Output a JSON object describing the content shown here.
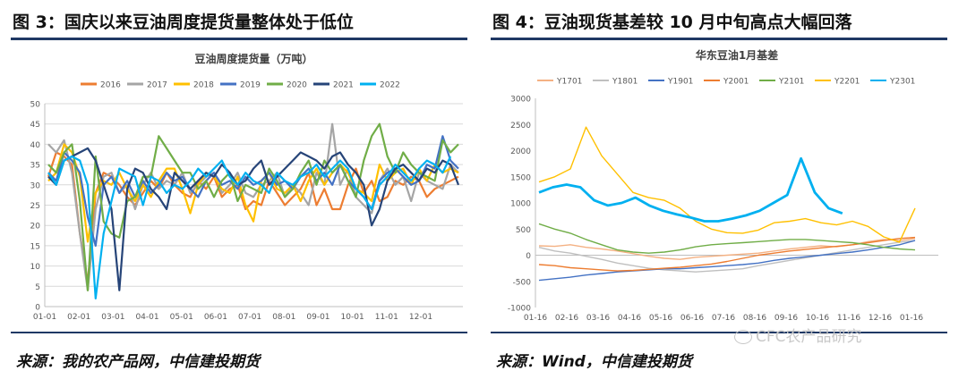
{
  "left_panel": {
    "figure_title": "图 3：国庆以来豆油周度提货量整体处于低位",
    "source": "来源：我的农产品网，中信建投期货"
  },
  "right_panel": {
    "figure_title": "图 4：豆油现货基差较 10 月中旬高点大幅回落",
    "source": "来源：Wind，中信建投期货"
  },
  "watermark": "CFC农产品研究",
  "colors": {
    "rule": "#1f3864"
  },
  "chart_data": [
    {
      "type": "line",
      "title": "豆油周度提货量（万吨）",
      "x_ticks": [
        "01-01",
        "02-01",
        "03-01",
        "04-01",
        "05-01",
        "06-01",
        "07-01",
        "08-01",
        "09-01",
        "10-01",
        "11-01",
        "12-01"
      ],
      "ylim": [
        0,
        50
      ],
      "y_ticks": [
        0,
        5,
        10,
        15,
        20,
        25,
        30,
        35,
        40,
        45,
        50
      ],
      "grid": true,
      "legend": "top",
      "series": [
        {
          "name": "2016",
          "color": "#ed7d31",
          "values": [
            32,
            38,
            37,
            35,
            18,
            6,
            28,
            33,
            32,
            30,
            27,
            25,
            28,
            31,
            29,
            33,
            30,
            28,
            27,
            31,
            29,
            32,
            27,
            29,
            30,
            24,
            26,
            25,
            31,
            28,
            25,
            27,
            29,
            33,
            25,
            29,
            24,
            24,
            30,
            34,
            28,
            31,
            26,
            27,
            31,
            30,
            32,
            31,
            27,
            29,
            30,
            31,
            32
          ]
        },
        {
          "name": "2017",
          "color": "#a5a5a5",
          "values": [
            40,
            38,
            41,
            33,
            18,
            4,
            24,
            32,
            33,
            28,
            30,
            24,
            30,
            33,
            29,
            31,
            30,
            33,
            28,
            30,
            32,
            33,
            28,
            30,
            33,
            28,
            27,
            30,
            31,
            33,
            27,
            30,
            28,
            25,
            33,
            30,
            45,
            30,
            34,
            27,
            25,
            23,
            31,
            34,
            30,
            32,
            26,
            33,
            31,
            30,
            29,
            35,
            33
          ]
        },
        {
          "name": "2018",
          "color": "#ffc000",
          "values": [
            31,
            33,
            40,
            38,
            32,
            16,
            28,
            31,
            30,
            33,
            29,
            26,
            30,
            27,
            31,
            34,
            34,
            29,
            23,
            30,
            33,
            32,
            29,
            28,
            32,
            25,
            21,
            31,
            33,
            29,
            28,
            30,
            26,
            31,
            34,
            30,
            33,
            35,
            33,
            29,
            28,
            26,
            35,
            31,
            33,
            34,
            30,
            34,
            31,
            35,
            33,
            34,
            33
          ]
        },
        {
          "name": "2019",
          "color": "#4472c4",
          "values": [
            33,
            31,
            38,
            36,
            33,
            22,
            15,
            30,
            32,
            28,
            31,
            27,
            31,
            28,
            30,
            33,
            31,
            32,
            29,
            27,
            31,
            33,
            30,
            31,
            29,
            32,
            30,
            31,
            33,
            30,
            31,
            29,
            32,
            34,
            31,
            33,
            30,
            35,
            31,
            29,
            27,
            24,
            31,
            33,
            34,
            32,
            30,
            31,
            35,
            34,
            42,
            36,
            34
          ]
        },
        {
          "name": "2020",
          "color": "#70ad47",
          "values": [
            35,
            33,
            38,
            40,
            26,
            4,
            37,
            21,
            18,
            17,
            26,
            27,
            32,
            32,
            42,
            39,
            36,
            33,
            33,
            29,
            31,
            27,
            31,
            33,
            26,
            30,
            29,
            28,
            34,
            31,
            27,
            29,
            33,
            36,
            30,
            36,
            33,
            35,
            31,
            27,
            36,
            42,
            45,
            37,
            33,
            38,
            35,
            33,
            32,
            31,
            41,
            38,
            40
          ]
        },
        {
          "name": "2021",
          "color": "#264478",
          "values": [
            32,
            30,
            36,
            37,
            38,
            39,
            36,
            30,
            24,
            4,
            29,
            34,
            33,
            29,
            27,
            24,
            33,
            31,
            29,
            31,
            33,
            32,
            35,
            33,
            30,
            31,
            34,
            36,
            30,
            32,
            34,
            36,
            38,
            37,
            36,
            34,
            37,
            38,
            35,
            33,
            30,
            20,
            24,
            31,
            34,
            35,
            33,
            31,
            34,
            33,
            36,
            35,
            30
          ]
        },
        {
          "name": "2022",
          "color": "#00b0f0",
          "values": [
            33,
            30,
            36,
            37,
            36,
            30,
            2,
            18,
            26,
            34,
            33,
            32,
            25,
            32,
            31,
            28,
            30,
            29,
            31,
            34,
            32,
            34,
            36,
            32,
            30,
            33,
            31,
            30,
            28,
            33,
            31,
            30,
            32,
            33,
            35,
            32,
            34,
            36,
            34,
            29,
            27,
            24,
            30,
            32,
            35,
            33,
            31,
            34,
            36,
            35,
            33,
            37
          ]
        }
      ]
    },
    {
      "type": "line",
      "title": "华东豆油1月基差",
      "x_ticks": [
        "01-16",
        "02-16",
        "03-16",
        "04-16",
        "05-16",
        "06-16",
        "07-16",
        "08-16",
        "09-16",
        "10-16",
        "11-16",
        "12-16",
        "01-16"
      ],
      "ylim": [
        -1000,
        3000
      ],
      "y_ticks": [
        -1000,
        -500,
        0,
        500,
        1000,
        1500,
        2000,
        2500,
        3000
      ],
      "grid": false,
      "legend": "top",
      "series": [
        {
          "name": "Y1701",
          "color": "#f4b183",
          "values": [
            180,
            170,
            200,
            150,
            120,
            80,
            30,
            -20,
            -60,
            -80,
            -40,
            -20,
            0,
            20,
            40,
            80,
            120,
            150,
            180,
            160,
            200,
            260,
            300,
            280,
            320
          ]
        },
        {
          "name": "Y1801",
          "color": "#bfbfbf",
          "values": [
            150,
            80,
            40,
            -20,
            -80,
            -150,
            -200,
            -250,
            -280,
            -300,
            -320,
            -300,
            -280,
            -260,
            -200,
            -150,
            -100,
            -50,
            0,
            50,
            100,
            150,
            200,
            250,
            280
          ]
        },
        {
          "name": "Y1901",
          "color": "#4472c4",
          "values": [
            -480,
            -450,
            -420,
            -380,
            -350,
            -320,
            -300,
            -280,
            -260,
            -260,
            -240,
            -220,
            -200,
            -180,
            -150,
            -100,
            -60,
            -30,
            0,
            30,
            60,
            100,
            150,
            200,
            280
          ]
        },
        {
          "name": "Y2001",
          "color": "#ed7d31",
          "values": [
            -180,
            -200,
            -240,
            -260,
            -280,
            -300,
            -290,
            -270,
            -250,
            -230,
            -200,
            -170,
            -120,
            -60,
            0,
            40,
            80,
            110,
            140,
            170,
            200,
            240,
            280,
            320,
            340
          ]
        },
        {
          "name": "Y2101",
          "color": "#70ad47",
          "values": [
            600,
            500,
            420,
            300,
            200,
            100,
            60,
            40,
            60,
            100,
            160,
            200,
            220,
            240,
            260,
            280,
            300,
            300,
            280,
            260,
            240,
            200,
            150,
            120,
            100
          ]
        },
        {
          "name": "Y2201",
          "color": "#ffc000",
          "values": [
            1400,
            1500,
            1650,
            2450,
            1900,
            1550,
            1200,
            1100,
            1050,
            900,
            650,
            500,
            430,
            420,
            480,
            620,
            650,
            700,
            620,
            580,
            650,
            550,
            350,
            250,
            900
          ]
        },
        {
          "name": "Y2301",
          "color": "#00b0f0",
          "values": [
            1200,
            1300,
            1350,
            1300,
            1050,
            950,
            1000,
            1100,
            950,
            850,
            780,
            720,
            650,
            650,
            700,
            760,
            850,
            1000,
            1150,
            1850,
            1200,
            900,
            800
          ]
        }
      ]
    }
  ]
}
